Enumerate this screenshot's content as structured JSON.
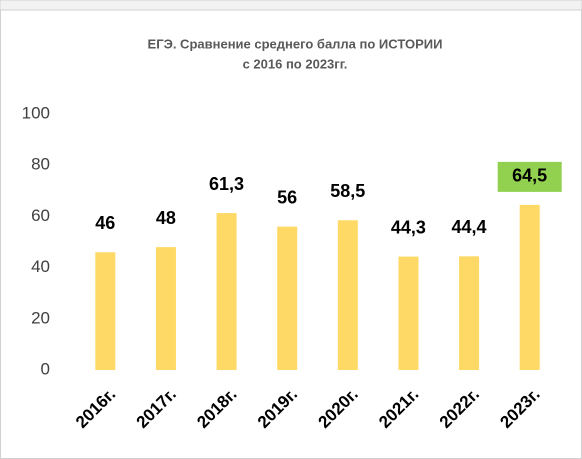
{
  "chart_data": {
    "type": "bar",
    "title": [
      "ЕГЭ. Сравнение среднего балла по ИСТОРИИ",
      "с 2016 по 2023гг."
    ],
    "categories": [
      "2016г.",
      "2017г.",
      "2018г.",
      "2019г.",
      "2020г.",
      "2021г.",
      "2022г.",
      "2023г."
    ],
    "values": [
      46,
      48,
      61.3,
      56,
      58.5,
      44.3,
      44.4,
      64.5
    ],
    "value_labels": [
      "46",
      "48",
      "61,3",
      "56",
      "58,5",
      "44,3",
      "44,4",
      "64,5"
    ],
    "color": "#ffd966",
    "highlight": {
      "index": 7,
      "color": "#92d050"
    },
    "ylim": [
      0,
      100
    ],
    "yticks": [
      0,
      20,
      40,
      60,
      80,
      100
    ],
    "grid": false
  }
}
